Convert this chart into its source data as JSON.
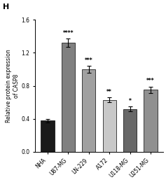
{
  "title": "H",
  "categories": [
    "NHA",
    "U87-MG",
    "LN-229",
    "A172",
    "U118-MG",
    "U251-MG"
  ],
  "values": [
    0.38,
    1.32,
    1.0,
    0.63,
    0.52,
    0.75
  ],
  "errors": [
    0.02,
    0.05,
    0.04,
    0.03,
    0.03,
    0.04
  ],
  "bar_colors": [
    "#1a1a1a",
    "#808080",
    "#a0a0a0",
    "#c8c8c8",
    "#686868",
    "#909090"
  ],
  "significance": [
    "",
    "****",
    "***",
    "**",
    "*",
    "***"
  ],
  "ylabel": "Relative protein expression\nof CASP8",
  "ylim": [
    0.0,
    1.6
  ],
  "yticks": [
    0.0,
    0.4,
    0.8,
    1.2,
    1.6
  ],
  "background_color": "#ffffff",
  "figsize": [
    2.37,
    2.6
  ],
  "dpi": 100
}
